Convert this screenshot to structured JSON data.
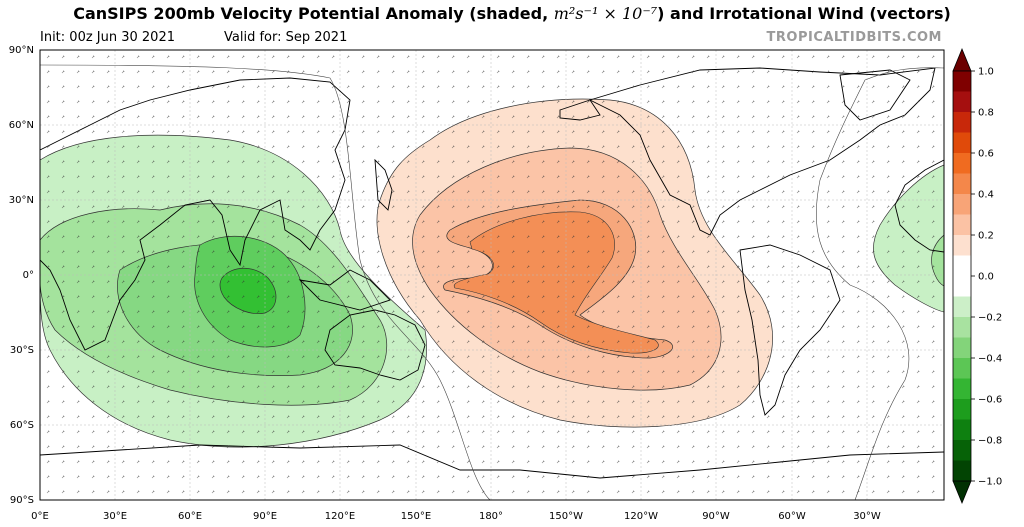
{
  "header": {
    "title": "CanSIPS 200mb Velocity Potential Anomaly (shaded, ",
    "title_units": "m²s⁻¹ × 10⁻⁷",
    "title_end": ") and Irrotational Wind (vectors)",
    "init": "Init: 00z Jun 30 2021",
    "valid": "Valid for: Sep 2021",
    "brand": "TROPICALTIDBITS.COM"
  },
  "axes": {
    "lat_labels": [
      "90°N",
      "60°N",
      "30°N",
      "0°",
      "30°S",
      "60°S",
      "90°S"
    ],
    "lon_labels": [
      "0°E",
      "30°E",
      "60°E",
      "90°E",
      "120°E",
      "150°E",
      "180°",
      "150°W",
      "120°W",
      "90°W",
      "60°W",
      "30°W"
    ]
  },
  "colorbar": {
    "ticks": [
      "1.0",
      "0.8",
      "0.6",
      "0.4",
      "0.2",
      "0.0",
      "−0.2",
      "−0.4",
      "−0.6",
      "−0.8",
      "−1.0"
    ],
    "colors": [
      "#7f0000",
      "#a50f0f",
      "#c8280a",
      "#e04a0a",
      "#f06b20",
      "#f4874a",
      "#f8a477",
      "#fbc2a4",
      "#fde0cf",
      "#ffffff",
      "#ffffff",
      "#ccefc8",
      "#a8e2a0",
      "#83d47a",
      "#5cc655",
      "#34b533",
      "#1d9d1d",
      "#0e8010",
      "#066207",
      "#024403"
    ]
  },
  "map_data": {
    "field": "200mb velocity potential anomaly",
    "negative_center": {
      "label": "Indian Ocean / Maritime Continent",
      "min_level": -0.5
    },
    "positive_center": {
      "label": "Central-Eastern Pacific",
      "max_level": 0.4
    },
    "contour_interval": 0.1,
    "colors": {
      "neg_0_1": "#c8f0c5",
      "neg_0_2": "#a4e39d",
      "neg_0_3": "#86d883",
      "neg_0_4": "#5fcd5e",
      "neg_0_5": "#33c033",
      "pos_0_1": "#fde0cd",
      "pos_0_2": "#fbc4a7",
      "pos_0_3": "#f6a77c",
      "pos_0_4": "#f38f56"
    }
  }
}
